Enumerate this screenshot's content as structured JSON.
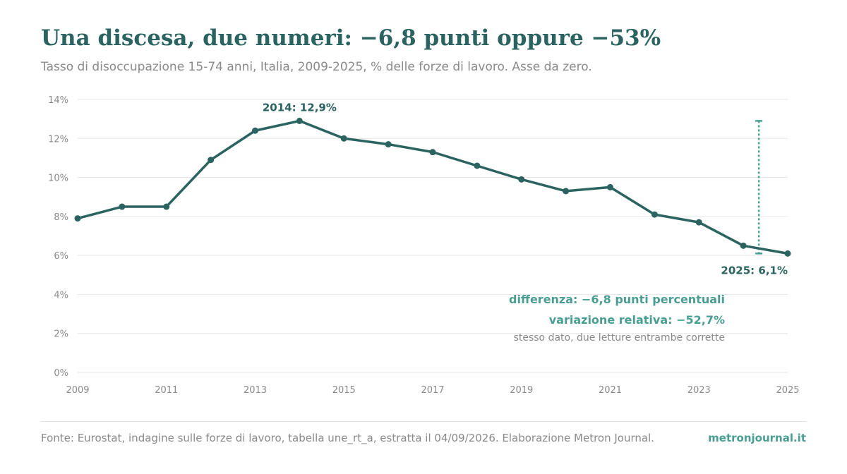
{
  "header": {
    "title": "Una discesa, due numeri: −6,8 punti oppure −53%",
    "subtitle": "Tasso di disoccupazione 15-74 anni, Italia, 2009-2025, % delle forze di lavoro. Asse da zero."
  },
  "chart_data": {
    "type": "line",
    "x": [
      2009,
      2010,
      2011,
      2012,
      2013,
      2014,
      2015,
      2016,
      2017,
      2018,
      2019,
      2020,
      2021,
      2022,
      2023,
      2024,
      2025
    ],
    "series": [
      {
        "values": [
          7.9,
          8.5,
          8.5,
          10.9,
          12.4,
          12.9,
          12.0,
          11.7,
          11.3,
          10.6,
          9.9,
          9.3,
          9.5,
          8.1,
          7.7,
          6.5,
          6.1
        ]
      }
    ],
    "xlim": [
      2009,
      2025
    ],
    "ylim": [
      0,
      14
    ],
    "y_ticks": [
      "0%",
      "2%",
      "4%",
      "6%",
      "8%",
      "10%",
      "12%",
      "14%"
    ],
    "x_ticks": [
      "2009",
      "2011",
      "2013",
      "2015",
      "2017",
      "2019",
      "2021",
      "2023",
      "2025"
    ],
    "grid": true,
    "annotations": {
      "peak_label": "2014: 12,9%",
      "end_label": "2025: 6,1%",
      "diff_label": "differenza: −6,8 punti percentuali",
      "rel_label": "variazione relativa: −52,7%",
      "note_label": "stesso dato, due letture entrambe corrette"
    }
  },
  "footer": {
    "source": "Fonte: Eurostat, indagine sulle forze di lavoro, tabella une_rt_a, estratta il 04/09/2026. Elaborazione Metron Journal.",
    "brand": "metronjournal.it"
  },
  "colors": {
    "line": "#2a6360",
    "accent": "#4a9e91",
    "muted": "#8a8a8a",
    "grid": "#e6e6e6"
  }
}
